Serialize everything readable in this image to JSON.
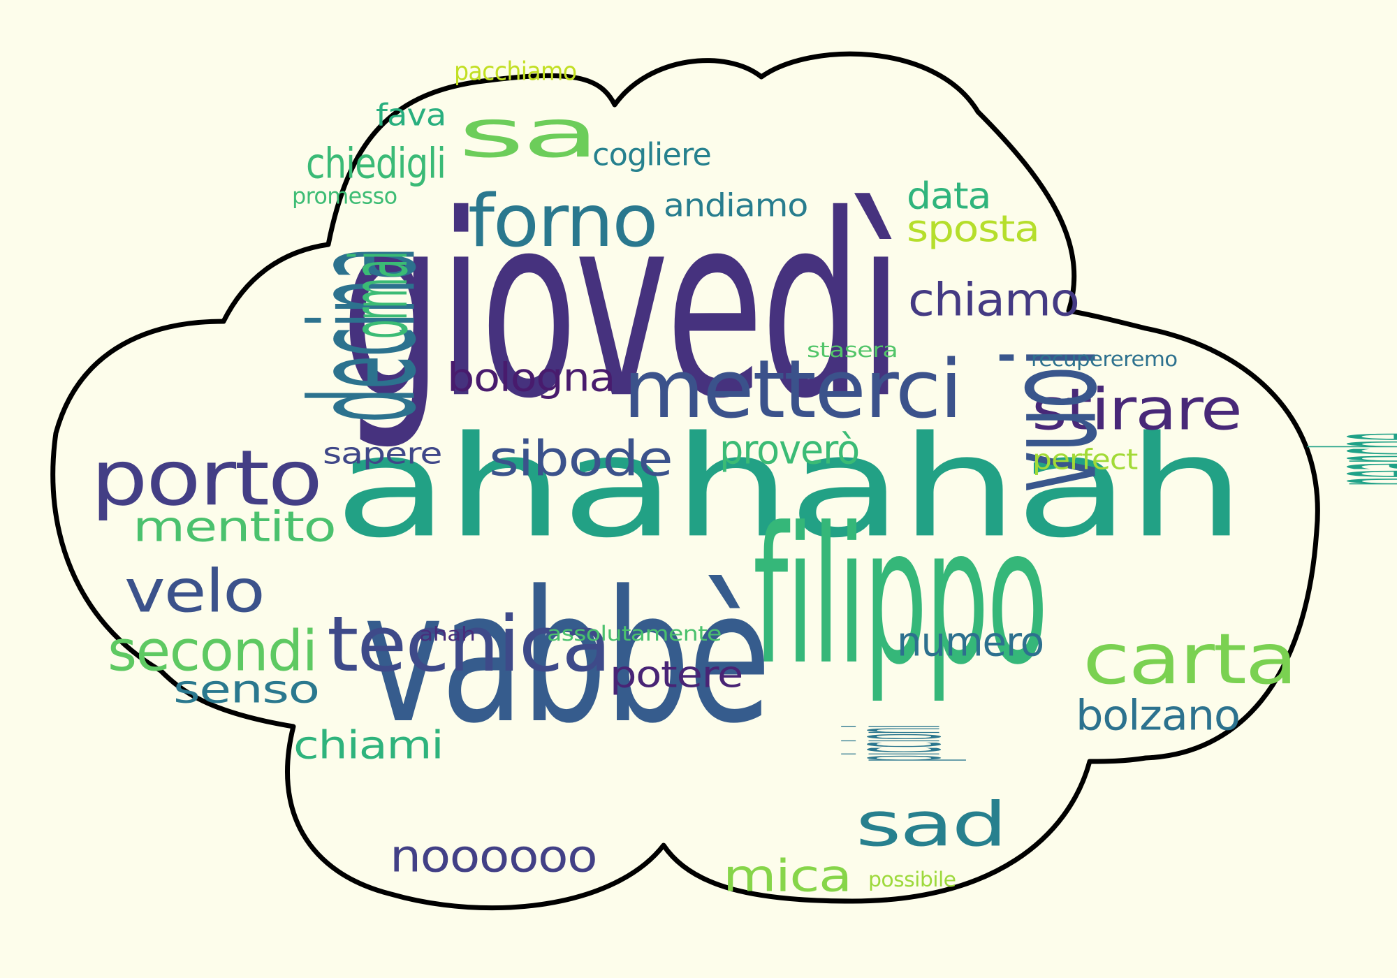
{
  "words": [
    {
      "text": "ahahahah",
      "color": "#22a185"
    },
    {
      "text": "giovedì",
      "color": "#46327e"
    },
    {
      "text": "filippo",
      "color": "#35b779"
    },
    {
      "text": "vabbè",
      "color": "#365c8d"
    },
    {
      "text": "metterci",
      "color": "#3b528b"
    },
    {
      "text": "tecnica",
      "color": "#3e4a89"
    },
    {
      "text": "porto",
      "color": "#433e85"
    },
    {
      "text": "velo",
      "color": "#3b528b"
    },
    {
      "text": "forno",
      "color": "#2a788e"
    },
    {
      "text": "sa",
      "color": "#6ccd5a"
    },
    {
      "text": "decina",
      "color": "#2c728e"
    },
    {
      "text": "stirare",
      "color": "#482878"
    },
    {
      "text": "vuoi",
      "color": "#39568c"
    },
    {
      "text": "carta",
      "color": "#7ad151"
    },
    {
      "text": "sad",
      "color": "#27808e"
    },
    {
      "text": "secondi",
      "color": "#5ec962"
    },
    {
      "text": "sibode",
      "color": "#3b528b"
    },
    {
      "text": "mentito",
      "color": "#4ac16d"
    },
    {
      "text": "noooooo",
      "color": "#424086"
    },
    {
      "text": "chiamo",
      "color": "#443a83"
    },
    {
      "text": "numero",
      "color": "#2d708e"
    },
    {
      "text": "neanche",
      "color": "#1fa187"
    },
    {
      "text": "bolzano",
      "color": "#2c728e"
    },
    {
      "text": "mica",
      "color": "#86d549"
    },
    {
      "text": "bologna",
      "color": "#481b6d"
    },
    {
      "text": "proverò",
      "color": "#3bbb75"
    },
    {
      "text": "senso",
      "color": "#2a788e"
    },
    {
      "text": "potere",
      "color": "#482475"
    },
    {
      "text": "chiami",
      "color": "#2eb37c"
    },
    {
      "text": "chiedigli",
      "color": "#3aba76"
    },
    {
      "text": "sposta",
      "color": "#b5de2b"
    },
    {
      "text": "data",
      "color": "#2fb47c"
    },
    {
      "text": "andiamo",
      "color": "#287d8e"
    },
    {
      "text": "cogliere",
      "color": "#26818e"
    },
    {
      "text": "fava",
      "color": "#29af7f"
    },
    {
      "text": "ormai",
      "color": "#3bbb75"
    },
    {
      "text": "sapere",
      "color": "#3f4788"
    },
    {
      "text": "perfect",
      "color": "#a2da37"
    },
    {
      "text": "piccioni",
      "color": "#2a768e"
    },
    {
      "text": "pacchiamo",
      "color": "#c2df23"
    },
    {
      "text": "promesso",
      "color": "#3dbc74"
    },
    {
      "text": "stasera",
      "color": "#52c569"
    },
    {
      "text": "recupereremo",
      "color": "#2d718e"
    },
    {
      "text": "assolutamente",
      "color": "#4ac16d"
    },
    {
      "text": "ahah",
      "color": "#472d7b"
    },
    {
      "text": "possibile",
      "color": "#9dd93b"
    }
  ],
  "colors": {
    "background": "#fdfdeb",
    "outline": "#000000",
    "cloud_fill": "#fdfdeb"
  }
}
